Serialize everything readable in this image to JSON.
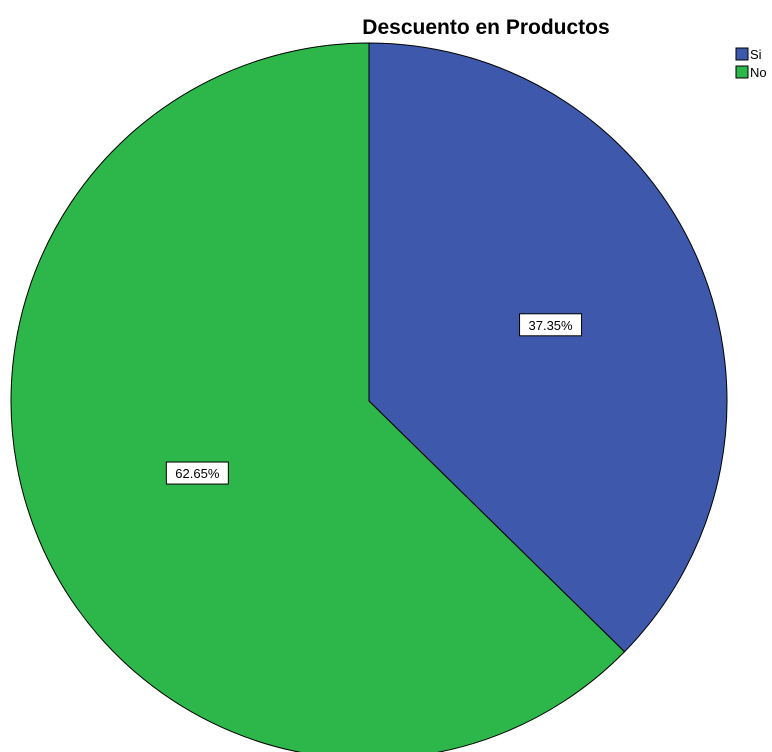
{
  "chart_data": {
    "type": "pie",
    "title": "Descuento en Productos",
    "categories": [
      "Si",
      "No"
    ],
    "values": [
      37.35,
      62.65
    ],
    "data_labels": [
      "37.35%",
      "62.65%"
    ],
    "colors": [
      "#3e58ac",
      "#2db64a"
    ],
    "legend": {
      "placement": "top-right",
      "entries": [
        "Si",
        "No"
      ]
    },
    "start_angle": "12 o'clock",
    "direction": "clockwise"
  }
}
